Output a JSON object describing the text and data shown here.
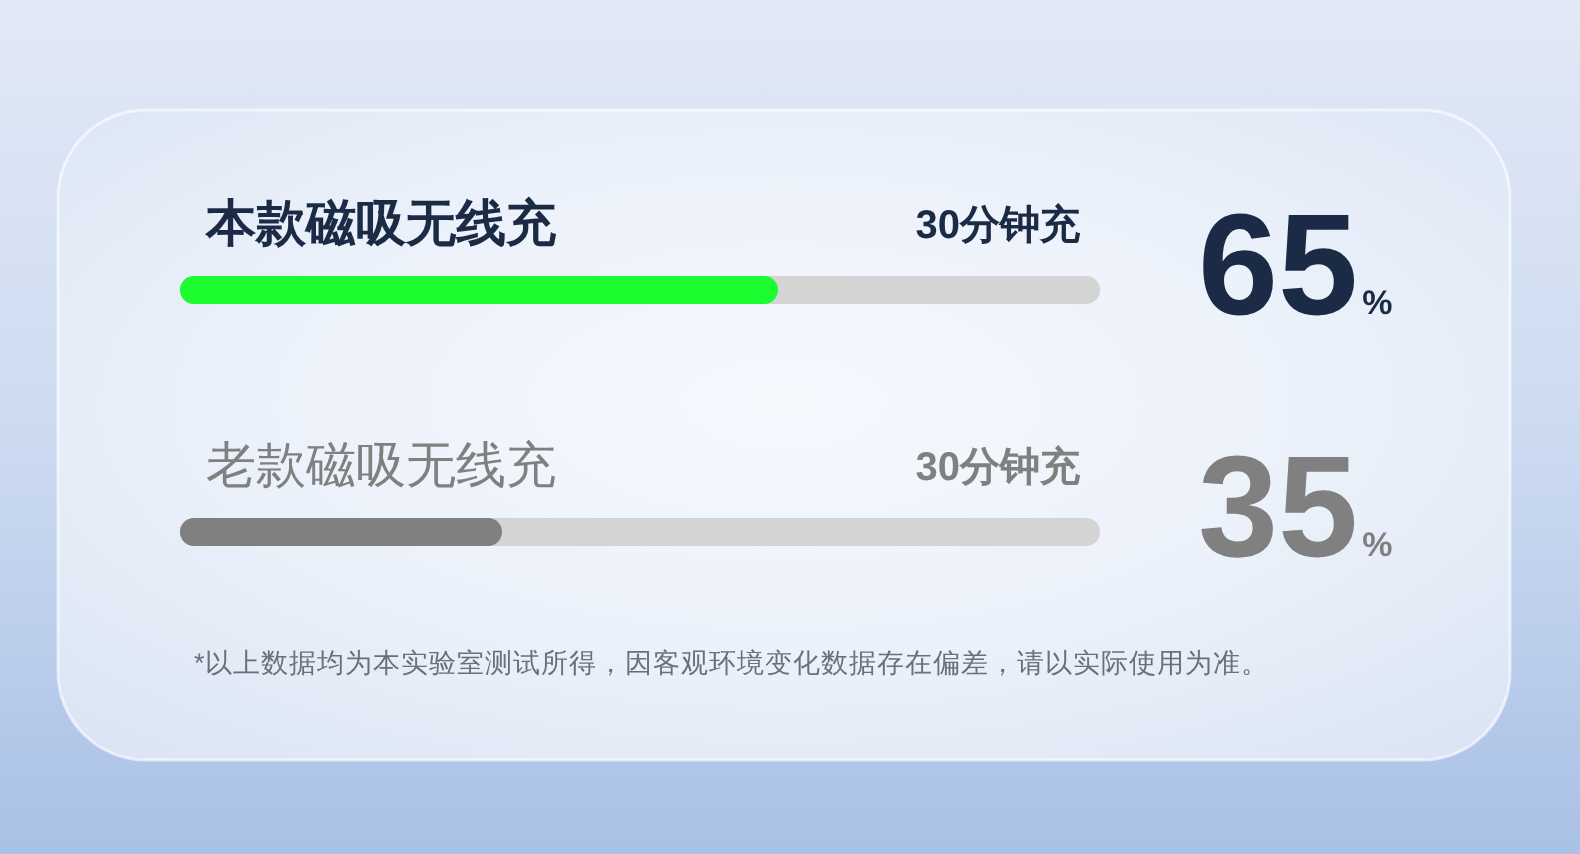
{
  "chart_data": {
    "type": "bar",
    "orientation": "horizontal",
    "categories": [
      "本款磁吸无线充",
      "老款磁吸无线充"
    ],
    "values": [
      65,
      35
    ],
    "colors": [
      "#1cfc2f",
      "#808080"
    ],
    "xlim": [
      0,
      100
    ],
    "value_labels": [
      "65%",
      "35%"
    ],
    "annotations": [
      "30分钟充",
      "30分钟充",
      "*以上数据均为本实验室测试所得，因客观环境变化数据存在偏差，请以实际使用为准。"
    ]
  }
}
